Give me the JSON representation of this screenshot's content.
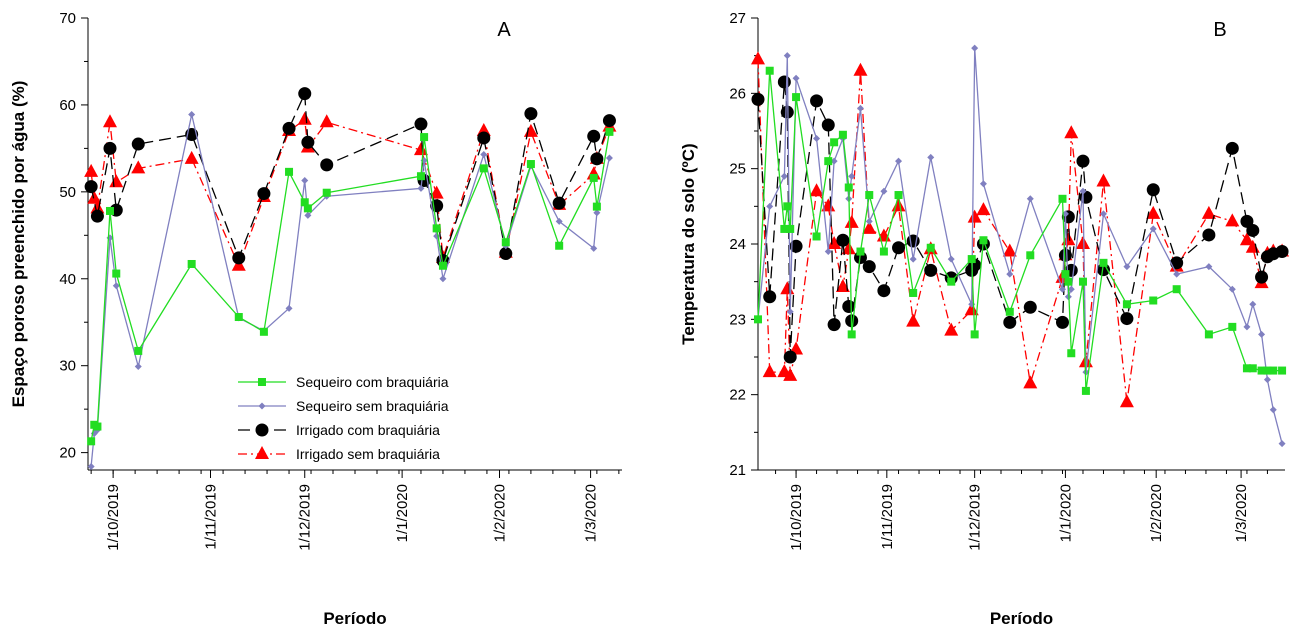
{
  "chart_data": [
    {
      "type": "line",
      "panel_letter": "A",
      "xlabel": "Período",
      "ylabel": "Espaço poroso preenchido por água (%)",
      "x_is_date": true,
      "xlim": [
        "2019-09-23",
        "2020-03-11"
      ],
      "ylim": [
        18,
        70
      ],
      "yticks": [
        20,
        30,
        40,
        50,
        60,
        70
      ],
      "xticks": [
        {
          "date": "2019-10-01",
          "label": "1/10/2019"
        },
        {
          "date": "2019-11-01",
          "label": "1/11/2019"
        },
        {
          "date": "2019-12-01",
          "label": "1/12/2019"
        },
        {
          "date": "2020-01-01",
          "label": "1/1/2020"
        },
        {
          "date": "2020-02-01",
          "label": "1/2/2020"
        },
        {
          "date": "2020-03-01",
          "label": "1/3/2020"
        }
      ],
      "grid": false,
      "legend_position": "bottom-center",
      "series": [
        {
          "name": "Sequeiro com braquiária",
          "color": "#22dd22",
          "marker": "square",
          "dash": "solid",
          "x": [
            "2019-09-24",
            "2019-09-25",
            "2019-09-26",
            "2019-09-30",
            "2019-10-02",
            "2019-10-09",
            "2019-10-26",
            "2019-11-10",
            "2019-11-18",
            "2019-11-26",
            "2019-12-01",
            "2019-12-02",
            "2019-12-08",
            "2020-01-07",
            "2020-01-08",
            "2020-01-12",
            "2020-01-14",
            "2020-01-27",
            "2020-02-03",
            "2020-02-11",
            "2020-02-20",
            "2020-03-02",
            "2020-03-03",
            "2020-03-07"
          ],
          "y": [
            21.3,
            23.2,
            23.0,
            47.8,
            40.6,
            31.7,
            41.7,
            35.6,
            33.9,
            52.3,
            48.8,
            48.1,
            49.9,
            51.8,
            56.3,
            45.8,
            41.5,
            52.7,
            44.2,
            53.2,
            43.8,
            51.6,
            48.3,
            56.9
          ]
        },
        {
          "name": "Sequeiro sem braquiária",
          "color": "#8080c0",
          "marker": "diamond",
          "dash": "solid",
          "x": [
            "2019-09-24",
            "2019-09-25",
            "2019-09-26",
            "2019-09-30",
            "2019-10-02",
            "2019-10-09",
            "2019-10-26",
            "2019-11-10",
            "2019-11-18",
            "2019-11-26",
            "2019-12-01",
            "2019-12-02",
            "2019-12-08",
            "2020-01-07",
            "2020-01-08",
            "2020-01-12",
            "2020-01-14",
            "2020-01-27",
            "2020-02-03",
            "2020-02-11",
            "2020-02-20",
            "2020-03-02",
            "2020-03-03",
            "2020-03-07"
          ],
          "y": [
            18.4,
            22.2,
            22.6,
            44.7,
            39.2,
            29.9,
            58.9,
            35.5,
            34.0,
            36.6,
            51.3,
            47.3,
            49.5,
            50.4,
            53.6,
            44.9,
            40.0,
            54.3,
            43.8,
            53.0,
            46.6,
            43.5,
            47.6,
            53.9
          ]
        },
        {
          "name": "Irrigado com braquiária",
          "color": "#000000",
          "marker": "circle",
          "dash": "12,6",
          "x": [
            "2019-09-24",
            "2019-09-26",
            "2019-09-30",
            "2019-10-02",
            "2019-10-09",
            "2019-10-26",
            "2019-11-10",
            "2019-11-18",
            "2019-11-26",
            "2019-12-01",
            "2019-12-02",
            "2019-12-08",
            "2020-01-07",
            "2020-01-08",
            "2020-01-12",
            "2020-01-14",
            "2020-01-27",
            "2020-02-03",
            "2020-02-11",
            "2020-02-20",
            "2020-03-02",
            "2020-03-03",
            "2020-03-07"
          ],
          "y": [
            50.6,
            47.2,
            55.0,
            47.9,
            55.5,
            56.6,
            42.4,
            49.8,
            57.3,
            61.3,
            55.7,
            53.1,
            57.8,
            51.3,
            48.4,
            42.1,
            56.2,
            42.9,
            59.0,
            48.7,
            56.4,
            53.8,
            58.2
          ]
        },
        {
          "name": "Irrigado sem braquiária",
          "color": "#ff0000",
          "marker": "triangle",
          "dash": "9,4,2,4",
          "x": [
            "2019-09-24",
            "2019-09-25",
            "2019-09-26",
            "2019-09-30",
            "2019-10-02",
            "2019-10-09",
            "2019-10-26",
            "2019-11-10",
            "2019-11-18",
            "2019-11-26",
            "2019-12-01",
            "2019-12-02",
            "2019-12-08",
            "2020-01-07",
            "2020-01-12",
            "2020-01-14",
            "2020-01-27",
            "2020-02-03",
            "2020-02-11",
            "2020-02-20",
            "2020-03-02",
            "2020-03-03",
            "2020-03-07"
          ],
          "y": [
            52.3,
            49.2,
            48.1,
            58.0,
            51.1,
            52.7,
            53.8,
            41.5,
            49.4,
            57.0,
            58.3,
            55.1,
            58.0,
            54.8,
            49.8,
            42.4,
            57.0,
            43.0,
            56.9,
            48.5,
            52.0,
            53.8,
            57.5
          ]
        }
      ],
      "legend": [
        {
          "label": "Sequeiro com braquiária"
        },
        {
          "label": "Sequeiro sem braquiária"
        },
        {
          "label": "Irrigado com braquiária"
        },
        {
          "label": "Irrigado sem braquiária"
        }
      ]
    },
    {
      "type": "line",
      "panel_letter": "B",
      "xlabel": "Período",
      "ylabel": "Temperatura do solo (ºC)",
      "x_is_date": true,
      "xlim": [
        "2019-09-18",
        "2020-03-16"
      ],
      "ylim": [
        21,
        27
      ],
      "yticks": [
        21,
        22,
        23,
        24,
        25,
        26,
        27
      ],
      "xticks": [
        {
          "date": "2019-10-01",
          "label": "1/10/2019"
        },
        {
          "date": "2019-11-01",
          "label": "1/11/2019"
        },
        {
          "date": "2019-12-01",
          "label": "1/12/2019"
        },
        {
          "date": "2020-01-01",
          "label": "1/1/2020"
        },
        {
          "date": "2020-02-01",
          "label": "1/2/2020"
        },
        {
          "date": "2020-03-01",
          "label": "1/3/2020"
        }
      ],
      "grid": false,
      "series": [
        {
          "name": "Sequeiro com braquiária",
          "color": "#22dd22",
          "marker": "square",
          "dash": "solid",
          "x": [
            "2019-09-18",
            "2019-09-22",
            "2019-09-27",
            "2019-09-28",
            "2019-09-29",
            "2019-10-01",
            "2019-10-08",
            "2019-10-12",
            "2019-10-14",
            "2019-10-17",
            "2019-10-19",
            "2019-10-20",
            "2019-10-23",
            "2019-10-26",
            "2019-10-31",
            "2019-11-05",
            "2019-11-10",
            "2019-11-16",
            "2019-11-23",
            "2019-11-30",
            "2019-12-01",
            "2019-12-04",
            "2019-12-13",
            "2019-12-20",
            "2019-12-31",
            "2020-01-01",
            "2020-01-02",
            "2020-01-03",
            "2020-01-07",
            "2020-01-08",
            "2020-01-14",
            "2020-01-22",
            "2020-01-31",
            "2020-02-08",
            "2020-02-19",
            "2020-02-27",
            "2020-03-03",
            "2020-03-05",
            "2020-03-08",
            "2020-03-10",
            "2020-03-12",
            "2020-03-15"
          ],
          "y": [
            23.0,
            26.3,
            24.2,
            24.5,
            24.2,
            25.95,
            24.1,
            25.1,
            25.35,
            25.45,
            24.75,
            22.8,
            23.9,
            24.65,
            23.9,
            24.65,
            23.35,
            23.95,
            23.5,
            23.8,
            22.8,
            24.05,
            23.1,
            23.85,
            24.6,
            23.6,
            23.5,
            22.55,
            23.5,
            22.05,
            23.75,
            23.2,
            23.25,
            23.4,
            22.8,
            22.9,
            22.35,
            22.35,
            22.32,
            22.32,
            22.32,
            22.32
          ]
        },
        {
          "name": "Sequeiro sem braquiária",
          "color": "#8080c0",
          "marker": "diamond",
          "dash": "solid",
          "x": [
            "2019-09-18",
            "2019-09-22",
            "2019-09-27",
            "2019-09-28",
            "2019-09-29",
            "2019-10-01",
            "2019-10-08",
            "2019-10-12",
            "2019-10-14",
            "2019-10-17",
            "2019-10-19",
            "2019-10-20",
            "2019-10-23",
            "2019-10-26",
            "2019-10-31",
            "2019-11-05",
            "2019-11-10",
            "2019-11-16",
            "2019-11-23",
            "2019-11-30",
            "2019-12-01",
            "2019-12-04",
            "2019-12-13",
            "2019-12-20",
            "2019-12-31",
            "2020-01-01",
            "2020-01-02",
            "2020-01-03",
            "2020-01-07",
            "2020-01-08",
            "2020-01-14",
            "2020-01-22",
            "2020-01-31",
            "2020-02-08",
            "2020-02-19",
            "2020-02-27",
            "2020-03-03",
            "2020-03-05",
            "2020-03-08",
            "2020-03-10",
            "2020-03-12",
            "2020-03-15"
          ],
          "y": [
            23.0,
            24.5,
            24.9,
            26.5,
            23.1,
            26.2,
            25.4,
            23.9,
            25.1,
            25.4,
            24.6,
            24.9,
            25.8,
            24.3,
            24.7,
            25.1,
            23.8,
            25.15,
            23.8,
            23.2,
            26.6,
            24.8,
            23.6,
            24.6,
            23.4,
            24.4,
            23.3,
            23.4,
            24.7,
            22.3,
            24.4,
            23.7,
            24.2,
            23.6,
            23.7,
            23.4,
            22.9,
            23.2,
            22.8,
            22.2,
            21.8,
            21.35
          ]
        },
        {
          "name": "Irrigado com braquiária",
          "color": "#000000",
          "marker": "circle",
          "dash": "12,6",
          "x": [
            "2019-09-18",
            "2019-09-22",
            "2019-09-27",
            "2019-09-28",
            "2019-09-29",
            "2019-10-01",
            "2019-10-08",
            "2019-10-12",
            "2019-10-14",
            "2019-10-17",
            "2019-10-19",
            "2019-10-20",
            "2019-10-23",
            "2019-10-26",
            "2019-10-31",
            "2019-11-05",
            "2019-11-10",
            "2019-11-16",
            "2019-11-23",
            "2019-11-30",
            "2019-12-01",
            "2019-12-04",
            "2019-12-13",
            "2019-12-20",
            "2019-12-31",
            "2020-01-01",
            "2020-01-02",
            "2020-01-03",
            "2020-01-07",
            "2020-01-08",
            "2020-01-14",
            "2020-01-22",
            "2020-01-31",
            "2020-02-08",
            "2020-02-19",
            "2020-02-27",
            "2020-03-03",
            "2020-03-05",
            "2020-03-08",
            "2020-03-10",
            "2020-03-12",
            "2020-03-15"
          ],
          "y": [
            25.92,
            23.3,
            26.15,
            25.75,
            22.5,
            23.97,
            25.9,
            25.58,
            22.93,
            24.05,
            23.17,
            22.98,
            23.82,
            23.7,
            23.38,
            23.95,
            24.04,
            23.65,
            23.55,
            23.65,
            23.72,
            24.0,
            22.96,
            23.16,
            22.96,
            23.85,
            24.36,
            23.65,
            25.1,
            24.62,
            23.66,
            23.01,
            24.72,
            23.75,
            24.12,
            25.27,
            24.3,
            24.18,
            23.56,
            23.83,
            23.87,
            23.9
          ]
        },
        {
          "name": "Irrigado sem braquiária",
          "color": "#ff0000",
          "marker": "triangle",
          "dash": "9,4,2,4",
          "x": [
            "2019-09-18",
            "2019-09-22",
            "2019-09-27",
            "2019-09-28",
            "2019-09-29",
            "2019-10-01",
            "2019-10-08",
            "2019-10-12",
            "2019-10-14",
            "2019-10-17",
            "2019-10-19",
            "2019-10-20",
            "2019-10-23",
            "2019-10-26",
            "2019-10-31",
            "2019-11-05",
            "2019-11-10",
            "2019-11-16",
            "2019-11-23",
            "2019-11-30",
            "2019-12-01",
            "2019-12-04",
            "2019-12-13",
            "2019-12-20",
            "2019-12-31",
            "2020-01-01",
            "2020-01-02",
            "2020-01-03",
            "2020-01-07",
            "2020-01-08",
            "2020-01-14",
            "2020-01-22",
            "2020-01-31",
            "2020-02-08",
            "2020-02-19",
            "2020-02-27",
            "2020-03-03",
            "2020-03-05",
            "2020-03-08",
            "2020-03-10",
            "2020-03-12",
            "2020-03-15"
          ],
          "y": [
            26.45,
            22.3,
            22.3,
            23.4,
            22.25,
            22.6,
            24.7,
            24.5,
            24.0,
            23.43,
            23.93,
            24.28,
            26.3,
            24.2,
            24.1,
            24.5,
            22.97,
            23.93,
            22.85,
            23.12,
            24.35,
            24.45,
            23.9,
            22.15,
            23.55,
            23.85,
            24.05,
            25.47,
            24.0,
            22.43,
            24.83,
            21.9,
            24.4,
            23.7,
            24.4,
            24.3,
            24.05,
            23.95,
            23.48,
            23.87,
            23.9,
            23.9
          ]
        }
      ]
    }
  ]
}
